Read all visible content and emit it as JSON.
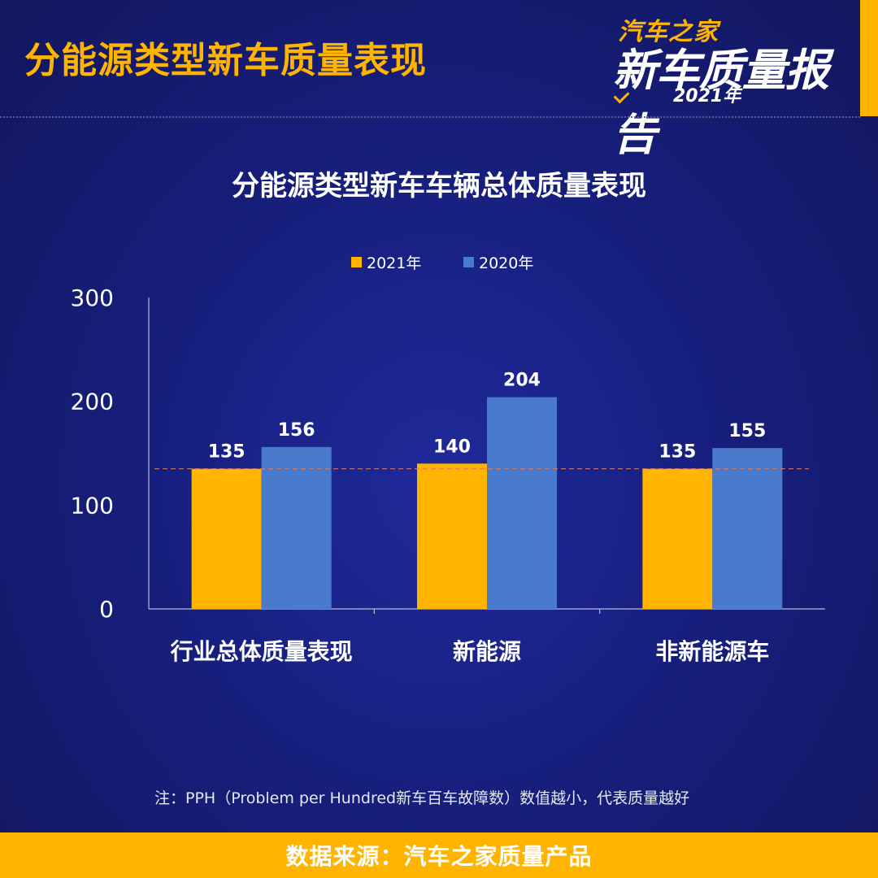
{
  "header": {
    "title": "分能源类型新车质量表现",
    "logo_top": "汽车之家",
    "logo_main": "新车质量报告",
    "logo_year": "2021年"
  },
  "colors": {
    "accent": "#ffb400",
    "series_2021": "#ffb400",
    "series_2020": "#4a7acb"
  },
  "chart_data": {
    "type": "bar",
    "title": "分能源类型新车车辆总体质量表现",
    "categories": [
      "行业总体质量表现",
      "新能源",
      "非新能源车"
    ],
    "series": [
      {
        "name": "2021年",
        "values": [
          135,
          140,
          135
        ]
      },
      {
        "name": "2020年",
        "values": [
          156,
          204,
          155
        ]
      }
    ],
    "ylim": [
      0,
      300
    ],
    "yticks": [
      "0",
      "100",
      "200",
      "300"
    ],
    "reference_line": 135,
    "legend": "top-center",
    "grid": false
  },
  "footnote": "注：PPH（Problem per Hundred新车百车故障数）数值越小，代表质量越好",
  "source": "数据来源：汽车之家质量产品"
}
